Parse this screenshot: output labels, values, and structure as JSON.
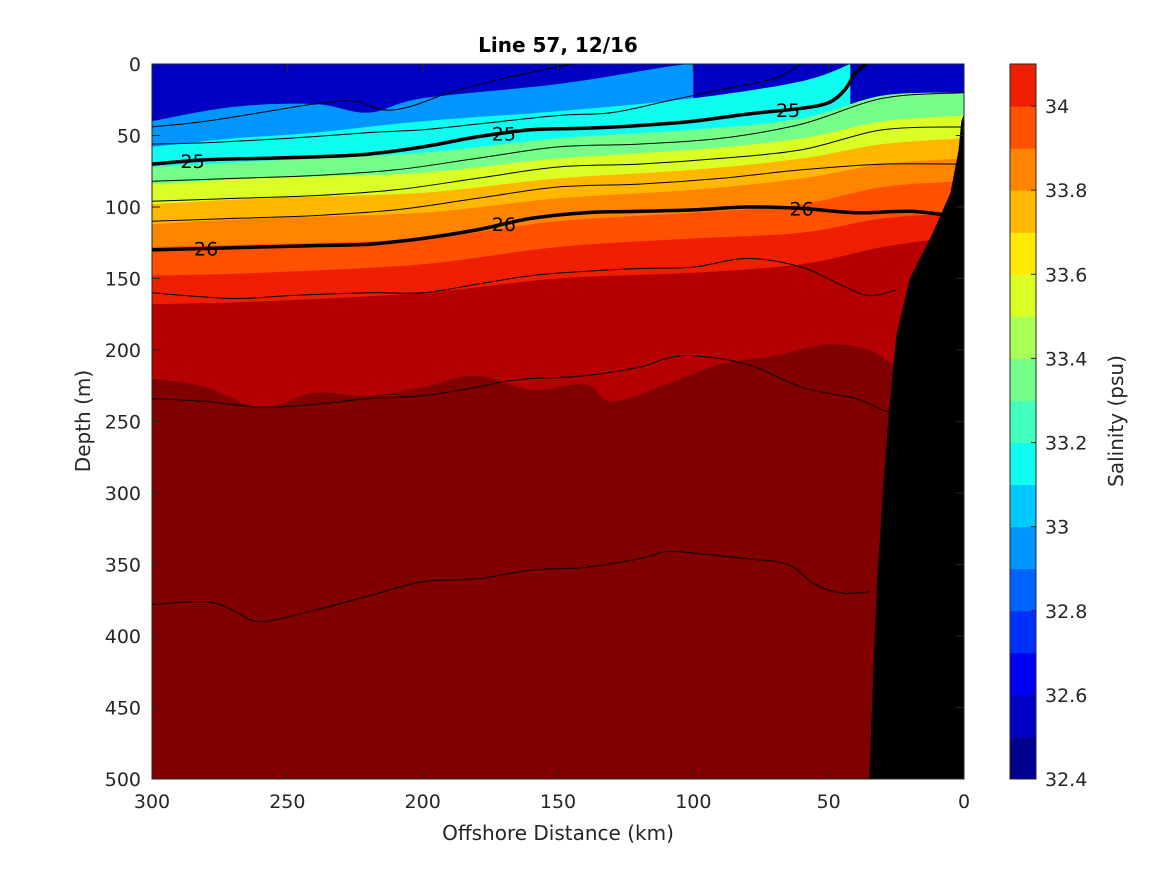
{
  "chart_data": {
    "type": "heatmap",
    "title": "Line 57, 12/16",
    "xlabel": "Offshore Distance (km)",
    "ylabel": "Depth (m)",
    "xlim": [
      300,
      0
    ],
    "ylim": [
      0,
      500
    ],
    "x_reversed": true,
    "y_reversed": true,
    "x_ticks": [
      "300",
      "250",
      "200",
      "150",
      "100",
      "50",
      "0"
    ],
    "y_ticks": [
      "0",
      "50",
      "100",
      "150",
      "200",
      "250",
      "300",
      "350",
      "400",
      "450",
      "500"
    ],
    "colorbar": {
      "label": "Salinity (psu)",
      "range": [
        32.4,
        34.1
      ],
      "tick_labels": [
        "32.4",
        "32.6",
        "32.8",
        "33",
        "33.2",
        "33.4",
        "33.6",
        "33.8",
        "34"
      ],
      "levels": [
        32.4,
        32.5,
        32.6,
        32.7,
        32.8,
        32.9,
        33.0,
        33.1,
        33.2,
        33.3,
        33.4,
        33.5,
        33.6,
        33.7,
        33.8,
        33.9,
        34.0,
        34.1
      ],
      "colors": [
        "#00008f",
        "#0000c4",
        "#0000f7",
        "#0030ff",
        "#0063ff",
        "#0096ff",
        "#00c9ff",
        "#0ffcf0",
        "#42ffbd",
        "#75ff8a",
        "#a8ff57",
        "#dbff24",
        "#ffea00",
        "#ffb700",
        "#ff8400",
        "#ff5100",
        "#f01e00",
        "#b40000",
        "#800000"
      ]
    },
    "salinity_isolines": [
      {
        "level": 32.8,
        "points": [
          [
            300,
            40
          ],
          [
            270,
            30
          ],
          [
            240,
            28
          ],
          [
            220,
            34
          ],
          [
            200,
            24
          ],
          [
            150,
            14
          ],
          [
            110,
            2
          ],
          [
            100,
            0
          ]
        ]
      },
      {
        "level": 33.0,
        "points": [
          [
            300,
            58
          ],
          [
            270,
            52
          ],
          [
            240,
            48
          ],
          [
            200,
            40
          ],
          [
            150,
            33
          ],
          [
            100,
            24
          ],
          [
            60,
            12
          ],
          [
            42,
            0
          ]
        ]
      },
      {
        "level": 33.2,
        "points": [
          [
            300,
            72
          ],
          [
            260,
            68
          ],
          [
            200,
            62
          ],
          [
            150,
            52
          ],
          [
            100,
            46
          ],
          [
            60,
            38
          ],
          [
            30,
            22
          ],
          [
            0,
            20
          ]
        ]
      },
      {
        "level": 33.4,
        "points": [
          [
            300,
            84
          ],
          [
            260,
            80
          ],
          [
            200,
            76
          ],
          [
            150,
            66
          ],
          [
            100,
            60
          ],
          [
            60,
            52
          ],
          [
            30,
            40
          ],
          [
            0,
            36
          ]
        ]
      },
      {
        "level": 33.6,
        "points": [
          [
            300,
            98
          ],
          [
            260,
            94
          ],
          [
            200,
            90
          ],
          [
            150,
            80
          ],
          [
            100,
            74
          ],
          [
            60,
            66
          ],
          [
            30,
            56
          ],
          [
            0,
            52
          ]
        ]
      },
      {
        "level": 33.7,
        "points": [
          [
            300,
            112
          ],
          [
            260,
            108
          ],
          [
            200,
            104
          ],
          [
            150,
            94
          ],
          [
            100,
            88
          ],
          [
            60,
            80
          ],
          [
            30,
            70
          ],
          [
            0,
            66
          ]
        ]
      },
      {
        "level": 33.8,
        "points": [
          [
            300,
            128
          ],
          [
            260,
            126
          ],
          [
            200,
            122
          ],
          [
            150,
            110
          ],
          [
            100,
            104
          ],
          [
            60,
            98
          ],
          [
            30,
            86
          ],
          [
            0,
            82
          ]
        ]
      },
      {
        "level": 33.9,
        "points": [
          [
            300,
            148
          ],
          [
            260,
            146
          ],
          [
            200,
            140
          ],
          [
            150,
            128
          ],
          [
            100,
            122
          ],
          [
            60,
            118
          ],
          [
            30,
            108
          ],
          [
            0,
            104
          ]
        ]
      },
      {
        "level": 34.0,
        "points": [
          [
            300,
            168
          ],
          [
            260,
            166
          ],
          [
            200,
            160
          ],
          [
            150,
            150
          ],
          [
            100,
            146
          ],
          [
            60,
            140
          ],
          [
            30,
            128
          ],
          [
            0,
            120
          ]
        ]
      },
      {
        "level": 34.1,
        "points": [
          [
            300,
            220
          ],
          [
            280,
            226
          ],
          [
            260,
            240
          ],
          [
            240,
            230
          ],
          [
            220,
            232
          ],
          [
            200,
            226
          ],
          [
            180,
            218
          ],
          [
            160,
            228
          ],
          [
            140,
            224
          ],
          [
            130,
            236
          ],
          [
            110,
            224
          ],
          [
            90,
            210
          ],
          [
            70,
            204
          ],
          [
            50,
            196
          ],
          [
            35,
            200
          ],
          [
            25,
            210
          ],
          [
            0,
            220
          ]
        ]
      }
    ],
    "deep_patch_34_1_above_bottom": [
      [
        300,
        466
      ],
      [
        290,
        450
      ],
      [
        280,
        440
      ],
      [
        260,
        440
      ],
      [
        240,
        444
      ],
      [
        225,
        428
      ],
      [
        210,
        416
      ],
      [
        195,
        400
      ],
      [
        185,
        406
      ],
      [
        175,
        422
      ],
      [
        165,
        428
      ],
      [
        155,
        424
      ],
      [
        150,
        424
      ],
      [
        140,
        436
      ],
      [
        130,
        430
      ],
      [
        120,
        440
      ],
      [
        110,
        444
      ],
      [
        100,
        448
      ],
      [
        90,
        440
      ],
      [
        80,
        430
      ],
      [
        70,
        420
      ],
      [
        55,
        410
      ],
      [
        40,
        376
      ],
      [
        32,
        362
      ],
      [
        32,
        500
      ],
      [
        300,
        500
      ]
    ],
    "mid_patch_34_1": [
      [
        38,
        298
      ],
      [
        44,
        318
      ],
      [
        35,
        336
      ],
      [
        30,
        330
      ],
      [
        30,
        300
      ]
    ],
    "density_contours": [
      {
        "level": "25",
        "labeled": true,
        "points": [
          [
            300,
            70
          ],
          [
            280,
            67
          ],
          [
            260,
            66
          ],
          [
            240,
            65
          ],
          [
            220,
            63
          ],
          [
            200,
            58
          ],
          [
            180,
            51
          ],
          [
            160,
            46
          ],
          [
            140,
            45
          ],
          [
            120,
            43
          ],
          [
            100,
            40
          ],
          [
            80,
            35
          ],
          [
            60,
            31
          ],
          [
            50,
            27
          ],
          [
            44,
            18
          ],
          [
            40,
            6
          ],
          [
            36,
            0
          ]
        ]
      },
      {
        "level": "26",
        "labeled": true,
        "points": [
          [
            300,
            130
          ],
          [
            280,
            129
          ],
          [
            260,
            128
          ],
          [
            240,
            127
          ],
          [
            220,
            126
          ],
          [
            200,
            122
          ],
          [
            180,
            116
          ],
          [
            160,
            108
          ],
          [
            140,
            104
          ],
          [
            120,
            103
          ],
          [
            100,
            102
          ],
          [
            80,
            100
          ],
          [
            60,
            101
          ],
          [
            40,
            104
          ],
          [
            20,
            103
          ],
          [
            5,
            106
          ]
        ]
      },
      {
        "level": "",
        "labeled": false,
        "points": [
          [
            300,
            44
          ],
          [
            280,
            40
          ],
          [
            260,
            34
          ],
          [
            240,
            28
          ],
          [
            225,
            26
          ],
          [
            215,
            32
          ],
          [
            205,
            30
          ],
          [
            190,
            20
          ],
          [
            170,
            10
          ],
          [
            155,
            4
          ],
          [
            145,
            0
          ]
        ]
      },
      {
        "level": "",
        "labeled": false,
        "points": [
          [
            300,
            56
          ],
          [
            280,
            55
          ],
          [
            250,
            52
          ],
          [
            220,
            48
          ],
          [
            200,
            46
          ],
          [
            180,
            42
          ],
          [
            150,
            36
          ],
          [
            130,
            34
          ],
          [
            110,
            26
          ],
          [
            90,
            18
          ],
          [
            70,
            10
          ],
          [
            60,
            0
          ]
        ]
      },
      {
        "level": "",
        "labeled": false,
        "points": [
          [
            300,
            82
          ],
          [
            270,
            80
          ],
          [
            240,
            78
          ],
          [
            210,
            74
          ],
          [
            180,
            66
          ],
          [
            150,
            58
          ],
          [
            120,
            56
          ],
          [
            90,
            52
          ],
          [
            60,
            42
          ],
          [
            30,
            24
          ],
          [
            0,
            20
          ]
        ]
      },
      {
        "level": "",
        "labeled": false,
        "points": [
          [
            300,
            96
          ],
          [
            270,
            94
          ],
          [
            240,
            92
          ],
          [
            210,
            88
          ],
          [
            180,
            80
          ],
          [
            150,
            72
          ],
          [
            120,
            70
          ],
          [
            90,
            66
          ],
          [
            60,
            60
          ],
          [
            30,
            46
          ],
          [
            0,
            44
          ]
        ]
      },
      {
        "level": "",
        "labeled": false,
        "points": [
          [
            300,
            110
          ],
          [
            270,
            108
          ],
          [
            240,
            106
          ],
          [
            210,
            102
          ],
          [
            180,
            94
          ],
          [
            150,
            86
          ],
          [
            120,
            84
          ],
          [
            90,
            80
          ],
          [
            60,
            74
          ],
          [
            30,
            70
          ],
          [
            0,
            70
          ]
        ]
      },
      {
        "level": "",
        "labeled": false,
        "points": [
          [
            300,
            160
          ],
          [
            270,
            164
          ],
          [
            250,
            162
          ],
          [
            220,
            160
          ],
          [
            200,
            160
          ],
          [
            180,
            154
          ],
          [
            160,
            148
          ],
          [
            140,
            145
          ],
          [
            120,
            143
          ],
          [
            100,
            142
          ],
          [
            80,
            136
          ],
          [
            60,
            142
          ],
          [
            45,
            155
          ],
          [
            35,
            162
          ],
          [
            25,
            158
          ]
        ]
      },
      {
        "level": "",
        "labeled": false,
        "points": [
          [
            300,
            234
          ],
          [
            280,
            236
          ],
          [
            260,
            240
          ],
          [
            240,
            238
          ],
          [
            220,
            234
          ],
          [
            200,
            232
          ],
          [
            180,
            226
          ],
          [
            170,
            222
          ],
          [
            160,
            220
          ],
          [
            140,
            218
          ],
          [
            120,
            212
          ],
          [
            110,
            206
          ],
          [
            100,
            204
          ],
          [
            80,
            210
          ],
          [
            60,
            226
          ],
          [
            40,
            234
          ],
          [
            30,
            242
          ],
          [
            25,
            244
          ]
        ]
      },
      {
        "level": "",
        "labeled": false,
        "points": [
          [
            300,
            378
          ],
          [
            280,
            376
          ],
          [
            270,
            382
          ],
          [
            260,
            390
          ],
          [
            240,
            382
          ],
          [
            220,
            372
          ],
          [
            200,
            362
          ],
          [
            180,
            360
          ],
          [
            160,
            354
          ],
          [
            140,
            352
          ],
          [
            120,
            346
          ],
          [
            110,
            341
          ],
          [
            100,
            342
          ],
          [
            80,
            346
          ],
          [
            65,
            350
          ],
          [
            55,
            364
          ],
          [
            45,
            370
          ],
          [
            35,
            369
          ]
        ]
      }
    ],
    "bathymetry": [
      [
        35,
        500
      ],
      [
        33,
        400
      ],
      [
        32,
        360
      ],
      [
        30,
        300
      ],
      [
        28,
        250
      ],
      [
        25,
        190
      ],
      [
        20,
        150
      ],
      [
        12,
        120
      ],
      [
        5,
        90
      ],
      [
        2,
        60
      ],
      [
        1,
        40
      ],
      [
        0,
        35
      ],
      [
        0,
        500
      ]
    ]
  }
}
